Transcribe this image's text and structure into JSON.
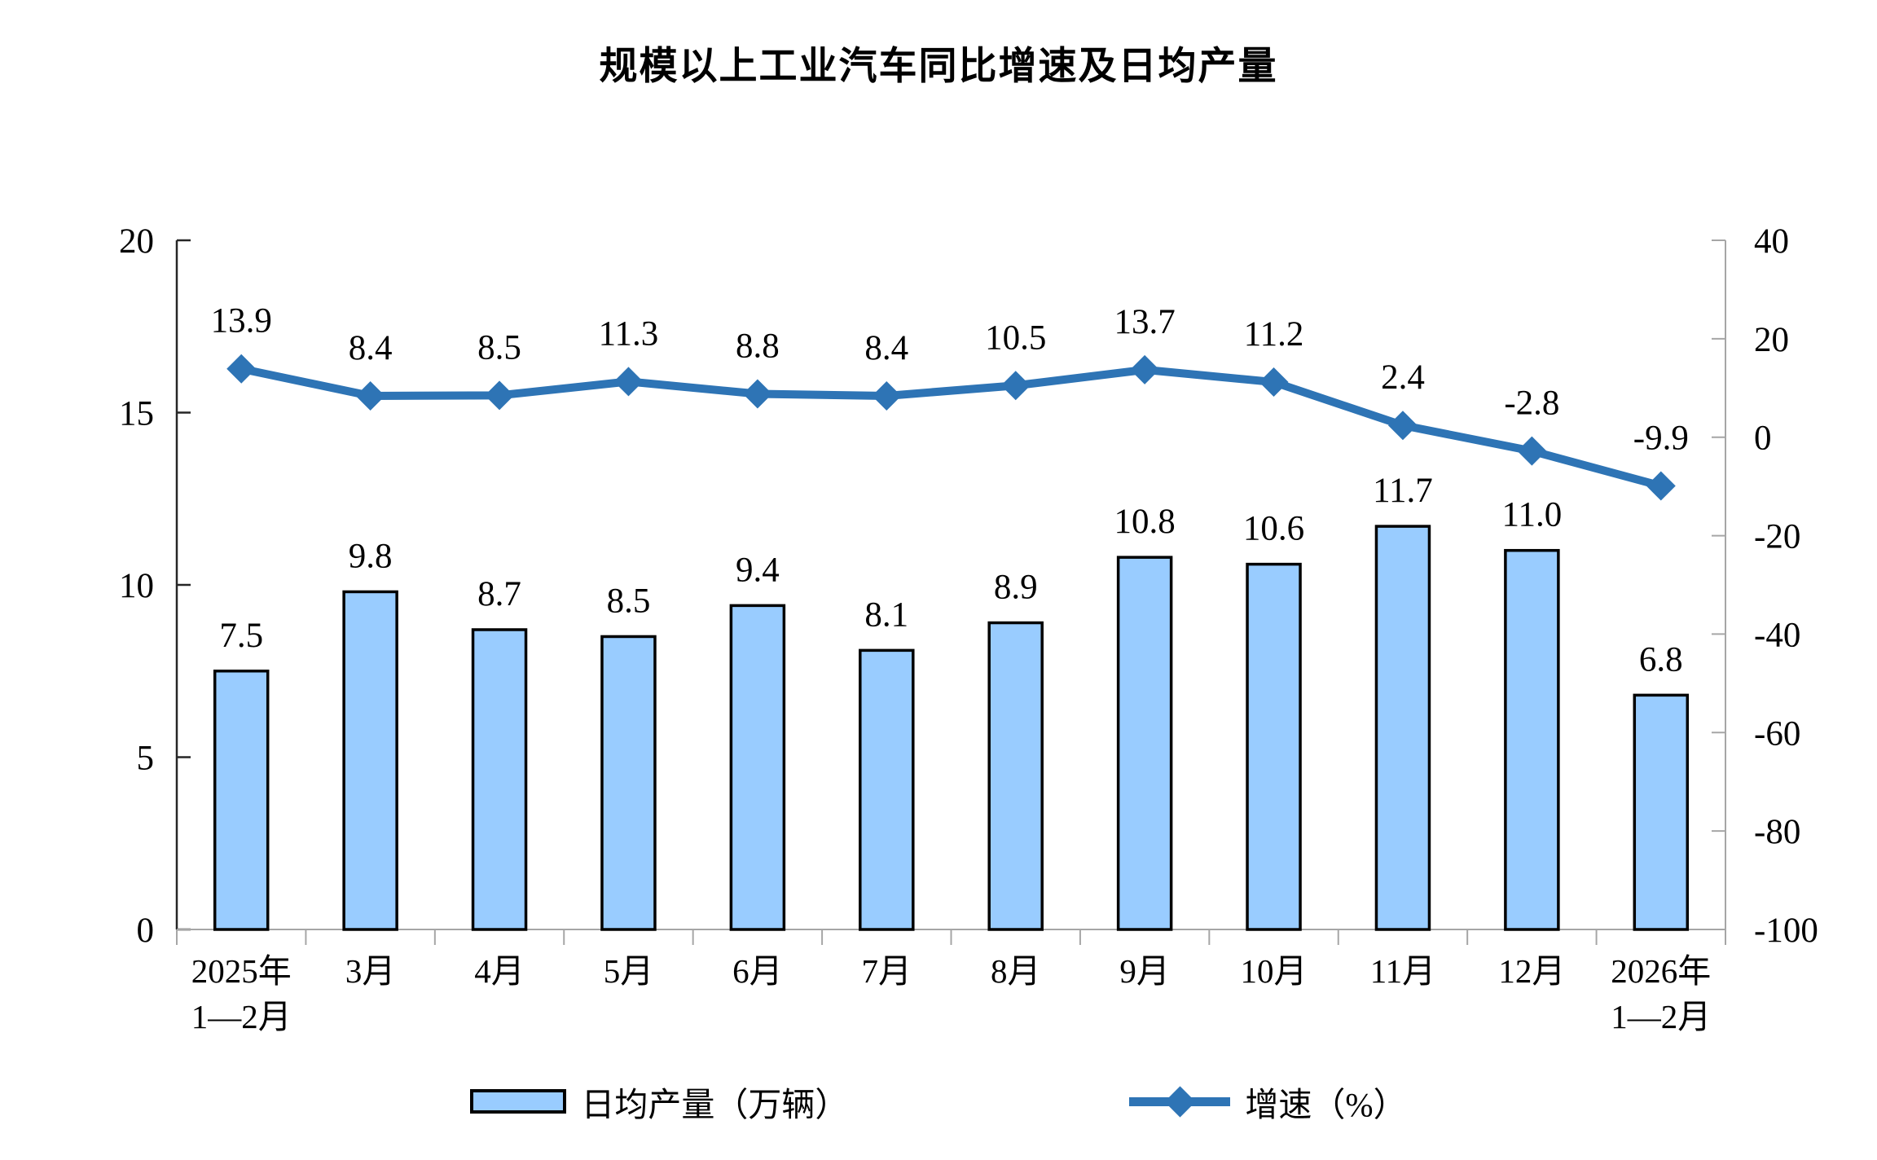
{
  "title": "规模以上工业汽车同比增速及日均产量",
  "legend": {
    "bar_label": "日均产量（万辆）",
    "line_label": "增速（%）"
  },
  "chart_data": {
    "type": "bar",
    "combo": "bar+line dual-axis",
    "title": "规模以上工业汽车同比增速及日均产量",
    "categories": [
      [
        "2025年",
        "1—2月"
      ],
      [
        "3月"
      ],
      [
        "4月"
      ],
      [
        "5月"
      ],
      [
        "6月"
      ],
      [
        "7月"
      ],
      [
        "8月"
      ],
      [
        "9月"
      ],
      [
        "10月"
      ],
      [
        "11月"
      ],
      [
        "12月"
      ],
      [
        "2026年",
        "1—2月"
      ]
    ],
    "series": [
      {
        "name": "日均产量（万辆）",
        "type": "bar",
        "axis": "left",
        "values": [
          7.5,
          9.8,
          8.7,
          8.5,
          9.4,
          8.1,
          8.9,
          10.8,
          10.6,
          11.7,
          11.0,
          6.8
        ]
      },
      {
        "name": "增速（%）",
        "type": "line",
        "axis": "right",
        "values": [
          13.9,
          8.4,
          8.5,
          11.3,
          8.8,
          8.4,
          10.5,
          13.7,
          11.2,
          2.4,
          -2.8,
          -9.9
        ]
      }
    ],
    "left_axis": {
      "range": [
        0,
        20
      ],
      "ticks": [
        20,
        15,
        10,
        5,
        0
      ]
    },
    "right_axis": {
      "range": [
        -100,
        40
      ],
      "ticks": [
        40,
        20,
        0,
        -20,
        -40,
        -60,
        -80,
        -100
      ]
    },
    "grid": "off",
    "legend_position": "bottom",
    "colors": {
      "bar_fill": "#99CCFF",
      "bar_border": "#000000",
      "line": "#2E74B5",
      "axis_left": "#262626",
      "axis_gray": "#A6A6A6",
      "text": "#000000"
    }
  }
}
